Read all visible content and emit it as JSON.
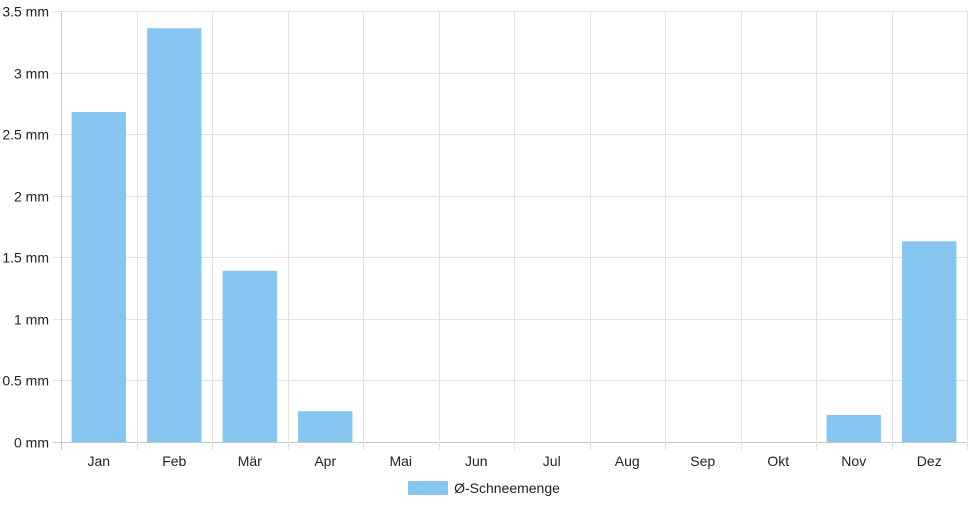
{
  "colors": {
    "bar": "#87c5f1",
    "grid": "#e2e2e2",
    "axis": "#c8c8c8"
  },
  "chart_data": {
    "type": "bar",
    "categories": [
      "Jan",
      "Feb",
      "Mär",
      "Apr",
      "Mai",
      "Jun",
      "Jul",
      "Aug",
      "Sep",
      "Okt",
      "Nov",
      "Dez"
    ],
    "series": [
      {
        "name": "Ø-Schneemenge",
        "values": [
          2.68,
          3.36,
          1.39,
          0.25,
          0,
          0,
          0,
          0,
          0,
          0,
          0.22,
          1.63
        ]
      }
    ],
    "ylim": [
      0,
      3.5
    ],
    "yticks": [
      0,
      0.5,
      1,
      1.5,
      2,
      2.5,
      3,
      3.5
    ],
    "ytick_labels": [
      "0 mm",
      "0.5 mm",
      "1 mm",
      "1.5 mm",
      "2 mm",
      "2.5 mm",
      "3 mm",
      "3.5 mm"
    ],
    "grid": true,
    "legend": "bottom"
  }
}
